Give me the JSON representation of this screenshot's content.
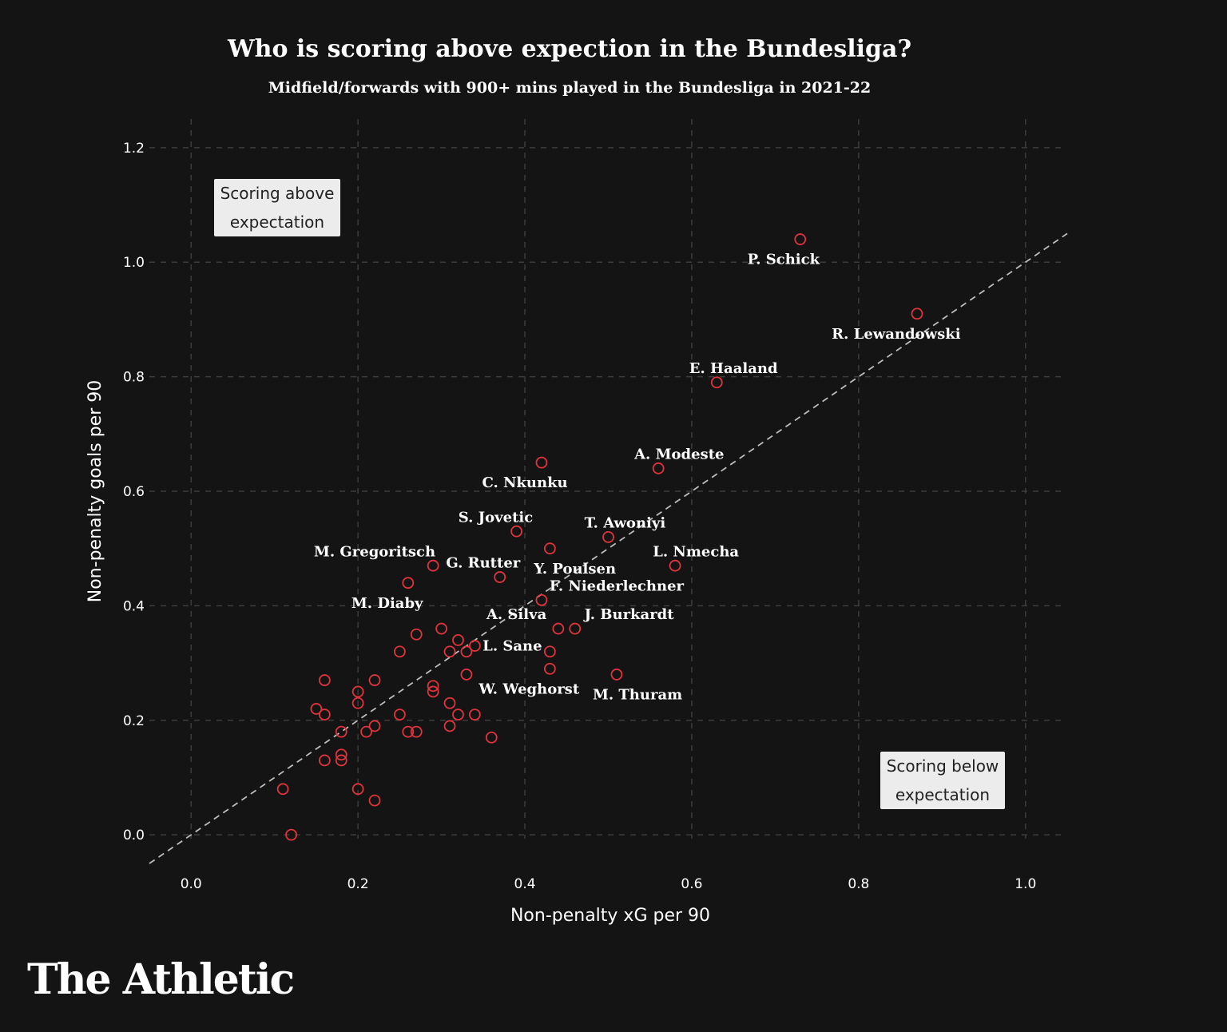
{
  "title": "Who is scoring above expection in the Bundesliga?",
  "subtitle": "Midfield/forwards with 900+ mins played in the Bundesliga in 2021-22",
  "brand": "The Athletic",
  "annotations": {
    "above": [
      "Scoring above",
      "expectation"
    ],
    "below": [
      "Scoring below",
      "expectation"
    ]
  },
  "colors": {
    "background": "#141414",
    "marker": "#e0343c",
    "grid": "#3c3c3c",
    "reference_line": "#bdbdbd"
  },
  "chart_data": {
    "type": "scatter",
    "title": "Who is scoring above expection in the Bundesliga?",
    "xlabel": "Non-penalty xG per 90",
    "ylabel": "Non-penalty goals per 90",
    "xlim": [
      -0.05,
      1.05
    ],
    "ylim": [
      -0.05,
      1.25
    ],
    "xticks": [
      0.0,
      0.2,
      0.4,
      0.6,
      0.8,
      1.0
    ],
    "xtick_labels": [
      "0.0",
      "0.2",
      "0.4",
      "0.6",
      "0.8",
      "1.0"
    ],
    "yticks": [
      0.0,
      0.2,
      0.4,
      0.6,
      0.8,
      1.0,
      1.2
    ],
    "ytick_labels": [
      "0.0",
      "0.2",
      "0.4",
      "0.6",
      "0.8",
      "1.0",
      "1.2"
    ],
    "grid": true,
    "reference_line": "y = x",
    "points": [
      {
        "name": "P. Schick",
        "x": 0.73,
        "y": 1.04,
        "label_dx": -0.02,
        "label_dy": -0.035
      },
      {
        "name": "R. Lewandowski",
        "x": 0.87,
        "y": 0.91,
        "label_dx": -0.025,
        "label_dy": -0.035
      },
      {
        "name": "E. Haaland",
        "x": 0.63,
        "y": 0.79,
        "label_dx": 0.02,
        "label_dy": 0.025
      },
      {
        "name": "A. Modeste",
        "x": 0.56,
        "y": 0.64,
        "label_dx": 0.025,
        "label_dy": 0.025
      },
      {
        "name": "C. Nkunku",
        "x": 0.42,
        "y": 0.65,
        "label_dx": -0.02,
        "label_dy": -0.035
      },
      {
        "name": "S. Jovetic",
        "x": 0.39,
        "y": 0.53,
        "label_dx": -0.025,
        "label_dy": 0.025
      },
      {
        "name": "T. Awoniyi",
        "x": 0.5,
        "y": 0.52,
        "label_dx": 0.02,
        "label_dy": 0.025
      },
      {
        "name": "Y. Poulsen",
        "x": 0.43,
        "y": 0.5,
        "label_dx": 0.03,
        "label_dy": -0.035
      },
      {
        "name": "L. Nmecha",
        "x": 0.58,
        "y": 0.47,
        "label_dx": 0.025,
        "label_dy": 0.025
      },
      {
        "name": "M. Gregoritsch",
        "x": 0.29,
        "y": 0.47,
        "label_dx": -0.07,
        "label_dy": 0.025
      },
      {
        "name": "G. Rutter",
        "x": 0.37,
        "y": 0.45,
        "label_dx": -0.02,
        "label_dy": 0.025
      },
      {
        "name": "M. Diaby",
        "x": 0.26,
        "y": 0.44,
        "label_dx": -0.025,
        "label_dy": -0.035
      },
      {
        "name": "F. Niederlechner",
        "x": 0.42,
        "y": 0.41,
        "label_dx": 0.09,
        "label_dy": 0.025
      },
      {
        "name": "A. Silva",
        "x": 0.44,
        "y": 0.36,
        "label_dx": -0.05,
        "label_dy": 0.025
      },
      {
        "name": "J. Burkardt",
        "x": 0.46,
        "y": 0.36,
        "label_dx": 0.065,
        "label_dy": 0.025
      },
      {
        "name": "L. Sane",
        "x": 0.34,
        "y": 0.33,
        "label_dx": 0.045,
        "label_dy": 0.0
      },
      {
        "name": "W. Weghorst",
        "x": 0.43,
        "y": 0.29,
        "label_dx": -0.025,
        "label_dy": -0.035
      },
      {
        "name": "M. Thuram",
        "x": 0.51,
        "y": 0.28,
        "label_dx": 0.025,
        "label_dy": -0.035
      },
      {
        "name": "",
        "x": 0.3,
        "y": 0.36
      },
      {
        "name": "",
        "x": 0.27,
        "y": 0.35
      },
      {
        "name": "",
        "x": 0.32,
        "y": 0.34
      },
      {
        "name": "",
        "x": 0.25,
        "y": 0.32
      },
      {
        "name": "",
        "x": 0.31,
        "y": 0.32
      },
      {
        "name": "",
        "x": 0.33,
        "y": 0.32
      },
      {
        "name": "",
        "x": 0.43,
        "y": 0.32
      },
      {
        "name": "",
        "x": 0.33,
        "y": 0.28
      },
      {
        "name": "",
        "x": 0.16,
        "y": 0.27
      },
      {
        "name": "",
        "x": 0.22,
        "y": 0.27
      },
      {
        "name": "",
        "x": 0.29,
        "y": 0.26
      },
      {
        "name": "",
        "x": 0.2,
        "y": 0.25
      },
      {
        "name": "",
        "x": 0.29,
        "y": 0.25
      },
      {
        "name": "",
        "x": 0.2,
        "y": 0.23
      },
      {
        "name": "",
        "x": 0.31,
        "y": 0.23
      },
      {
        "name": "",
        "x": 0.15,
        "y": 0.22
      },
      {
        "name": "",
        "x": 0.16,
        "y": 0.21
      },
      {
        "name": "",
        "x": 0.25,
        "y": 0.21
      },
      {
        "name": "",
        "x": 0.32,
        "y": 0.21
      },
      {
        "name": "",
        "x": 0.34,
        "y": 0.21
      },
      {
        "name": "",
        "x": 0.22,
        "y": 0.19
      },
      {
        "name": "",
        "x": 0.31,
        "y": 0.19
      },
      {
        "name": "",
        "x": 0.18,
        "y": 0.18
      },
      {
        "name": "",
        "x": 0.21,
        "y": 0.18
      },
      {
        "name": "",
        "x": 0.26,
        "y": 0.18
      },
      {
        "name": "",
        "x": 0.27,
        "y": 0.18
      },
      {
        "name": "",
        "x": 0.36,
        "y": 0.17
      },
      {
        "name": "",
        "x": 0.18,
        "y": 0.14
      },
      {
        "name": "",
        "x": 0.16,
        "y": 0.13
      },
      {
        "name": "",
        "x": 0.18,
        "y": 0.13
      },
      {
        "name": "",
        "x": 0.11,
        "y": 0.08
      },
      {
        "name": "",
        "x": 0.2,
        "y": 0.08
      },
      {
        "name": "",
        "x": 0.22,
        "y": 0.06
      },
      {
        "name": "",
        "x": 0.12,
        "y": 0.0
      }
    ]
  }
}
